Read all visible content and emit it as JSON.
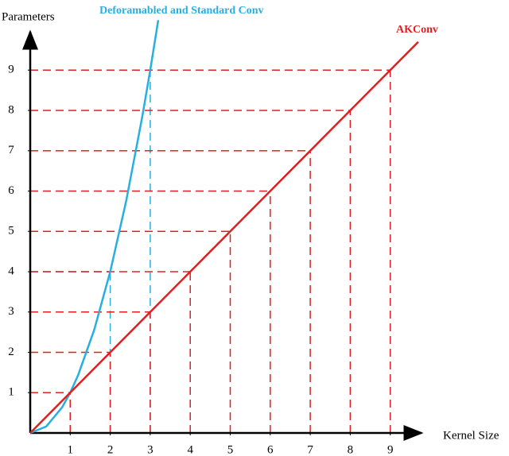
{
  "chart_data": {
    "type": "line",
    "x_label": "Kernel Size",
    "y_label": "Parameters",
    "xlim": [
      0,
      9.8
    ],
    "ylim": [
      0,
      9.9
    ],
    "xticks": [
      1,
      2,
      3,
      4,
      5,
      6,
      7,
      8,
      9
    ],
    "yticks": [
      1,
      2,
      3,
      4,
      5,
      6,
      7,
      8,
      9
    ],
    "guides": true,
    "series": [
      {
        "name": "Deforamabled and Standard Conv",
        "color": "#29aee0",
        "x": [
          0,
          0.4,
          0.8,
          1,
          1.2,
          1.6,
          2,
          2.4,
          2.8,
          3,
          3.2
        ],
        "values": [
          0,
          0.16,
          0.64,
          1,
          1.44,
          2.56,
          4,
          5.76,
          7.84,
          9,
          10.24
        ]
      },
      {
        "name": "AKConv",
        "color": "#e02020",
        "x": [
          0,
          1,
          2,
          3,
          4,
          5,
          6,
          7,
          8,
          9,
          9.7
        ],
        "values": [
          0,
          1,
          2,
          3,
          4,
          5,
          6,
          7,
          8,
          9,
          9.7
        ]
      }
    ]
  }
}
